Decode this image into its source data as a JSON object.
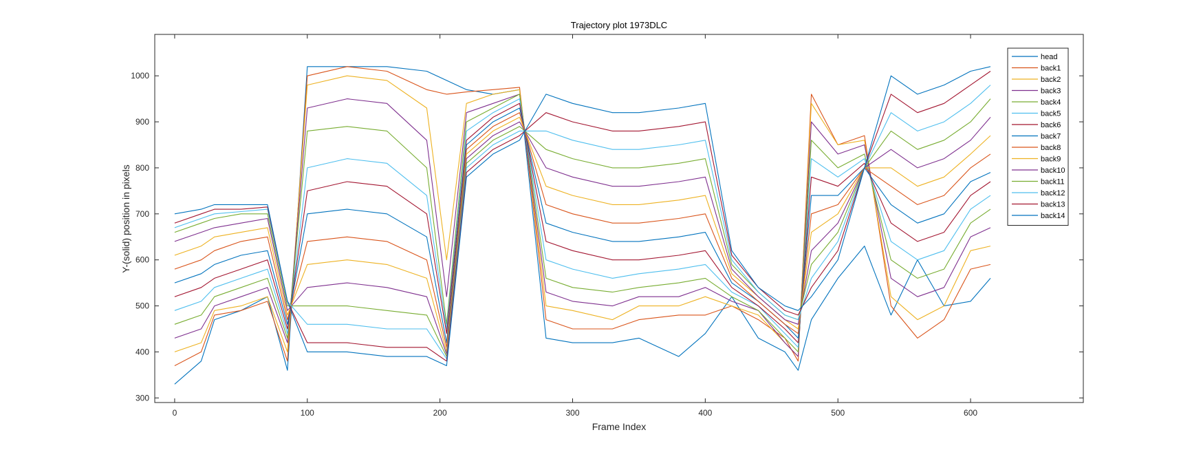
{
  "chart_data": {
    "type": "line",
    "title": "Trajectory plot 1973DLC",
    "xlabel": "Frame Index",
    "ylabel": "Y-(solid) position in pixels",
    "xlim": [
      -15,
      685
    ],
    "ylim": [
      290,
      1090
    ],
    "xticks": [
      0,
      100,
      200,
      300,
      400,
      500,
      600
    ],
    "yticks": [
      300,
      400,
      500,
      600,
      700,
      800,
      900,
      1000
    ],
    "grid": false,
    "legend_position": "top-right",
    "series": [
      {
        "name": "head",
        "color": "#0072BD",
        "x": [
          0,
          20,
          30,
          50,
          70,
          85,
          100,
          130,
          160,
          190,
          205,
          220,
          240,
          260,
          280,
          300,
          330,
          350,
          380,
          400,
          420,
          440,
          460,
          470,
          480,
          500,
          520,
          540,
          560,
          580,
          600,
          615
        ],
        "y": [
          330,
          380,
          470,
          490,
          520,
          360,
          1020,
          1020,
          1020,
          1010,
          990,
          970,
          960,
          970,
          430,
          420,
          420,
          430,
          390,
          440,
          520,
          430,
          400,
          360,
          470,
          560,
          630,
          480,
          600,
          500,
          510,
          560
        ]
      },
      {
        "name": "back1",
        "color": "#D95319",
        "x": [
          0,
          20,
          30,
          50,
          70,
          85,
          100,
          130,
          160,
          190,
          205,
          220,
          240,
          260,
          280,
          300,
          330,
          350,
          380,
          400,
          420,
          440,
          460,
          470,
          480,
          500,
          520,
          540,
          560,
          580,
          600,
          615
        ],
        "y": [
          370,
          400,
          480,
          490,
          510,
          380,
          1000,
          1020,
          1010,
          970,
          960,
          965,
          970,
          975,
          470,
          450,
          450,
          470,
          480,
          480,
          500,
          470,
          430,
          380,
          960,
          850,
          870,
          500,
          430,
          470,
          580,
          590
        ]
      },
      {
        "name": "back2",
        "color": "#EDB120",
        "x": [
          0,
          20,
          30,
          50,
          70,
          85,
          100,
          130,
          160,
          190,
          205,
          220,
          240,
          260,
          280,
          300,
          330,
          350,
          380,
          400,
          420,
          440,
          460,
          470,
          480,
          500,
          520,
          540,
          560,
          580,
          600,
          615
        ],
        "y": [
          400,
          420,
          490,
          500,
          520,
          400,
          980,
          1000,
          990,
          930,
          600,
          940,
          960,
          970,
          500,
          490,
          470,
          500,
          500,
          520,
          500,
          480,
          420,
          390,
          940,
          850,
          860,
          520,
          470,
          500,
          620,
          630
        ]
      },
      {
        "name": "back3",
        "color": "#7E2F8E",
        "x": [
          0,
          20,
          30,
          50,
          70,
          85,
          100,
          130,
          160,
          190,
          205,
          220,
          240,
          260,
          280,
          300,
          330,
          350,
          380,
          400,
          420,
          440,
          460,
          470,
          480,
          500,
          520,
          540,
          560,
          580,
          600,
          615
        ],
        "y": [
          430,
          450,
          500,
          520,
          540,
          420,
          930,
          950,
          940,
          860,
          520,
          920,
          940,
          960,
          530,
          510,
          500,
          520,
          520,
          540,
          510,
          490,
          420,
          390,
          900,
          830,
          850,
          560,
          520,
          540,
          650,
          670
        ]
      },
      {
        "name": "back4",
        "color": "#77AC30",
        "x": [
          0,
          20,
          30,
          50,
          70,
          85,
          100,
          130,
          160,
          190,
          205,
          220,
          240,
          260,
          280,
          300,
          330,
          350,
          380,
          400,
          420,
          440,
          460,
          470,
          480,
          500,
          520,
          540,
          560,
          580,
          600,
          615
        ],
        "y": [
          460,
          480,
          520,
          540,
          560,
          430,
          880,
          890,
          880,
          800,
          460,
          900,
          930,
          960,
          560,
          540,
          530,
          540,
          550,
          560,
          520,
          490,
          430,
          400,
          860,
          800,
          830,
          600,
          560,
          580,
          680,
          710
        ]
      },
      {
        "name": "back5",
        "color": "#4DBEEE",
        "x": [
          0,
          20,
          30,
          50,
          70,
          85,
          100,
          130,
          160,
          190,
          205,
          220,
          240,
          260,
          280,
          300,
          330,
          350,
          380,
          400,
          420,
          440,
          460,
          470,
          480,
          500,
          520,
          540,
          560,
          580,
          600,
          615
        ],
        "y": [
          490,
          510,
          540,
          560,
          580,
          440,
          800,
          820,
          810,
          740,
          450,
          880,
          920,
          950,
          600,
          580,
          560,
          570,
          580,
          590,
          530,
          500,
          440,
          410,
          820,
          780,
          820,
          640,
          600,
          620,
          710,
          740
        ]
      },
      {
        "name": "back6",
        "color": "#A2142F",
        "x": [
          0,
          20,
          30,
          50,
          70,
          85,
          100,
          130,
          160,
          190,
          205,
          220,
          240,
          260,
          280,
          300,
          330,
          350,
          380,
          400,
          420,
          440,
          460,
          470,
          480,
          500,
          520,
          540,
          560,
          580,
          600,
          615
        ],
        "y": [
          520,
          540,
          560,
          580,
          600,
          450,
          750,
          770,
          760,
          700,
          440,
          860,
          910,
          940,
          640,
          620,
          600,
          600,
          610,
          620,
          540,
          500,
          450,
          420,
          780,
          760,
          810,
          680,
          640,
          660,
          740,
          770
        ]
      },
      {
        "name": "back7",
        "color": "#0072BD",
        "x": [
          0,
          20,
          30,
          50,
          70,
          85,
          100,
          130,
          160,
          190,
          205,
          220,
          240,
          260,
          280,
          300,
          330,
          350,
          380,
          400,
          420,
          440,
          460,
          470,
          480,
          500,
          520,
          540,
          560,
          580,
          600,
          615
        ],
        "y": [
          550,
          570,
          590,
          610,
          620,
          460,
          700,
          710,
          700,
          650,
          420,
          850,
          900,
          930,
          680,
          660,
          640,
          640,
          650,
          660,
          550,
          510,
          460,
          430,
          740,
          740,
          800,
          720,
          680,
          700,
          770,
          790
        ]
      },
      {
        "name": "back8",
        "color": "#D95319",
        "x": [
          0,
          20,
          30,
          50,
          70,
          85,
          100,
          130,
          160,
          190,
          205,
          220,
          240,
          260,
          280,
          300,
          330,
          350,
          380,
          400,
          420,
          440,
          460,
          470,
          480,
          500,
          520,
          540,
          560,
          580,
          600,
          615
        ],
        "y": [
          580,
          600,
          620,
          640,
          650,
          470,
          640,
          650,
          640,
          600,
          410,
          840,
          890,
          920,
          720,
          700,
          680,
          680,
          690,
          700,
          560,
          510,
          460,
          440,
          700,
          720,
          800,
          760,
          720,
          740,
          800,
          830
        ]
      },
      {
        "name": "back9",
        "color": "#EDB120",
        "x": [
          0,
          20,
          30,
          50,
          70,
          85,
          100,
          130,
          160,
          190,
          205,
          220,
          240,
          260,
          280,
          300,
          330,
          350,
          380,
          400,
          420,
          440,
          460,
          470,
          480,
          500,
          520,
          540,
          560,
          580,
          600,
          615
        ],
        "y": [
          610,
          630,
          650,
          660,
          670,
          480,
          590,
          600,
          590,
          560,
          400,
          830,
          880,
          910,
          760,
          740,
          720,
          720,
          730,
          740,
          570,
          520,
          470,
          450,
          660,
          700,
          800,
          800,
          760,
          780,
          830,
          870
        ]
      },
      {
        "name": "back10",
        "color": "#7E2F8E",
        "x": [
          0,
          20,
          30,
          50,
          70,
          85,
          100,
          130,
          160,
          190,
          205,
          220,
          240,
          260,
          280,
          300,
          330,
          350,
          380,
          400,
          420,
          440,
          460,
          470,
          480,
          500,
          520,
          540,
          560,
          580,
          600,
          615
        ],
        "y": [
          640,
          660,
          670,
          680,
          690,
          490,
          540,
          550,
          540,
          520,
          395,
          820,
          870,
          900,
          800,
          780,
          760,
          760,
          770,
          780,
          580,
          520,
          470,
          460,
          620,
          680,
          800,
          840,
          800,
          820,
          860,
          910
        ]
      },
      {
        "name": "back11",
        "color": "#77AC30",
        "x": [
          0,
          20,
          30,
          50,
          70,
          85,
          100,
          130,
          160,
          190,
          205,
          220,
          240,
          260,
          280,
          300,
          330,
          350,
          380,
          400,
          420,
          440,
          460,
          470,
          480,
          500,
          520,
          540,
          560,
          580,
          600,
          615
        ],
        "y": [
          660,
          680,
          690,
          700,
          700,
          500,
          500,
          500,
          490,
          480,
          390,
          810,
          860,
          890,
          840,
          820,
          800,
          800,
          810,
          820,
          590,
          530,
          480,
          470,
          590,
          660,
          800,
          880,
          840,
          860,
          900,
          950
        ]
      },
      {
        "name": "back12",
        "color": "#4DBEEE",
        "x": [
          0,
          20,
          30,
          50,
          70,
          85,
          100,
          130,
          160,
          190,
          205,
          220,
          240,
          260,
          280,
          300,
          330,
          350,
          380,
          400,
          420,
          440,
          460,
          470,
          480,
          500,
          520,
          540,
          560,
          580,
          600,
          615
        ],
        "y": [
          670,
          690,
          700,
          705,
          710,
          510,
          460,
          460,
          450,
          450,
          385,
          800,
          850,
          880,
          880,
          860,
          840,
          840,
          850,
          860,
          600,
          530,
          480,
          470,
          560,
          640,
          800,
          920,
          880,
          900,
          940,
          980
        ]
      },
      {
        "name": "back13",
        "color": "#A2142F",
        "x": [
          0,
          20,
          30,
          50,
          70,
          85,
          100,
          130,
          160,
          190,
          205,
          220,
          240,
          260,
          280,
          300,
          330,
          350,
          380,
          400,
          420,
          440,
          460,
          470,
          480,
          500,
          520,
          540,
          560,
          580,
          600,
          615
        ],
        "y": [
          680,
          700,
          710,
          710,
          715,
          510,
          420,
          420,
          410,
          410,
          380,
          790,
          840,
          870,
          920,
          900,
          880,
          880,
          890,
          900,
          610,
          540,
          490,
          480,
          540,
          620,
          800,
          960,
          920,
          940,
          980,
          1010
        ]
      },
      {
        "name": "back14",
        "color": "#0072BD",
        "x": [
          0,
          20,
          30,
          50,
          70,
          85,
          100,
          130,
          160,
          190,
          205,
          220,
          240,
          260,
          280,
          300,
          330,
          350,
          380,
          400,
          420,
          440,
          460,
          470,
          480,
          500,
          520,
          540,
          560,
          580,
          600,
          615
        ],
        "y": [
          700,
          710,
          720,
          720,
          720,
          510,
          400,
          400,
          390,
          390,
          370,
          780,
          830,
          860,
          960,
          940,
          920,
          920,
          930,
          940,
          620,
          540,
          500,
          490,
          520,
          600,
          800,
          1000,
          960,
          980,
          1010,
          1020
        ]
      }
    ]
  }
}
